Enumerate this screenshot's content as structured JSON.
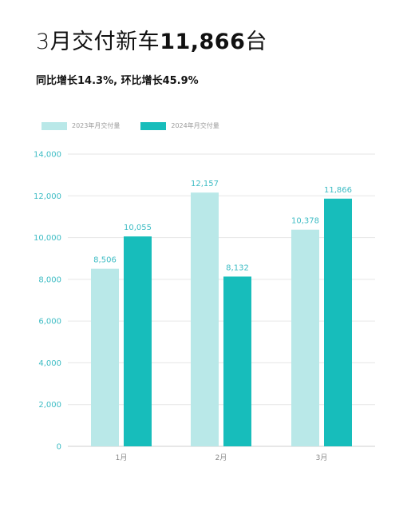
{
  "header": {
    "title_prefix": "3月交付新车",
    "title_number": "11,866",
    "title_suffix": "台",
    "subtitle": "同比增长14.3%, 环比增长45.9%"
  },
  "colors": {
    "series_2023": "#b9e8e8",
    "series_2024": "#17bdbb",
    "axis_text": "#3dbcc4",
    "grid": "#e6e6e6"
  },
  "chart_data": {
    "type": "bar",
    "categories": [
      "1月",
      "2月",
      "3月"
    ],
    "series": [
      {
        "name": "2023年月交付量",
        "values": [
          8506,
          12157,
          10378
        ],
        "labels": [
          "8,506",
          "12,157",
          "10,378"
        ]
      },
      {
        "name": "2024年月交付量",
        "values": [
          10055,
          8132,
          11866
        ],
        "labels": [
          "10,055",
          "8,132",
          "11,866"
        ]
      }
    ],
    "ylim": [
      0,
      14000
    ],
    "yticks": [
      0,
      2000,
      4000,
      6000,
      8000,
      10000,
      12000,
      14000
    ],
    "ytick_labels": [
      "0",
      "2,000",
      "4,000",
      "6,000",
      "8,000",
      "10,000",
      "12,000",
      "14,000"
    ],
    "grid": true,
    "legend_position": "top-left"
  }
}
